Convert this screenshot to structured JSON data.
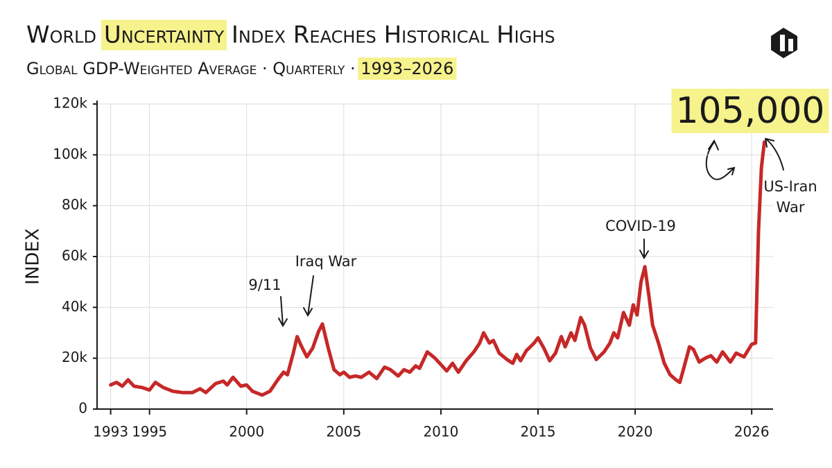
{
  "chart_data": {
    "type": "line",
    "title": "World Uncertainty Index Reaches Historical Highs",
    "subtitle": "Global GDP-Weighted Average · Quarterly · 1993–2026",
    "y_label": "INDEX",
    "color": "#c62828",
    "grid": true,
    "x": [
      1993.0,
      1993.3,
      1993.6,
      1993.9,
      1994.2,
      1994.6,
      1995.0,
      1995.3,
      1995.7,
      1996.2,
      1996.7,
      1997.2,
      1997.6,
      1997.9,
      1998.4,
      1998.8,
      1999.0,
      1999.3,
      1999.7,
      2000.0,
      2000.3,
      2000.8,
      2001.2,
      2001.6,
      2001.9,
      2002.1,
      2002.4,
      2002.6,
      2002.8,
      2003.1,
      2003.4,
      2003.7,
      2003.9,
      2004.2,
      2004.5,
      2004.8,
      2005.0,
      2005.3,
      2005.6,
      2005.9,
      2006.3,
      2006.7,
      2007.1,
      2007.4,
      2007.8,
      2008.1,
      2008.4,
      2008.7,
      2008.9,
      2009.3,
      2009.7,
      2010.0,
      2010.3,
      2010.6,
      2010.9,
      2011.3,
      2011.7,
      2012.0,
      2012.2,
      2012.5,
      2012.7,
      2013.0,
      2013.4,
      2013.7,
      2013.9,
      2014.1,
      2014.4,
      2014.8,
      2015.0,
      2015.3,
      2015.6,
      2015.9,
      2016.2,
      2016.4,
      2016.7,
      2016.9,
      2017.2,
      2017.4,
      2017.7,
      2018.0,
      2018.4,
      2018.7,
      2018.9,
      2019.1,
      2019.4,
      2019.7,
      2019.9,
      2020.1,
      2020.3,
      2020.5,
      2020.7,
      2020.9,
      2021.2,
      2021.5,
      2021.8,
      2022.1,
      2022.3,
      2022.5,
      2022.8,
      2023.0,
      2023.3,
      2023.6,
      2023.9,
      2024.2,
      2024.5,
      2024.9,
      2025.2,
      2025.6,
      2026.0,
      2026.2,
      2026.35,
      2026.5,
      2026.65
    ],
    "values": [
      9500,
      10500,
      9000,
      11500,
      9000,
      8500,
      7500,
      10500,
      8500,
      7000,
      6500,
      6500,
      8000,
      6500,
      10000,
      11000,
      9500,
      12500,
      9000,
      9500,
      7000,
      5500,
      7000,
      11500,
      14500,
      13500,
      22000,
      28500,
      25000,
      20500,
      24000,
      30500,
      33500,
      24000,
      15500,
      13500,
      14500,
      12500,
      13000,
      12500,
      14500,
      12000,
      16500,
      15500,
      13000,
      15500,
      14500,
      17000,
      16000,
      22500,
      20000,
      17500,
      15000,
      18000,
      14500,
      19000,
      22500,
      26000,
      30000,
      26000,
      27000,
      22000,
      19500,
      18000,
      21500,
      19000,
      23000,
      26000,
      28000,
      24000,
      19000,
      22000,
      28500,
      24500,
      30000,
      27000,
      36000,
      33000,
      24000,
      19500,
      22500,
      26000,
      30000,
      28000,
      38000,
      33000,
      41000,
      37000,
      50000,
      56000,
      45000,
      33000,
      26000,
      18000,
      13500,
      11500,
      10500,
      16000,
      24500,
      23500,
      18500,
      20000,
      21000,
      18500,
      22500,
      18500,
      22000,
      20500,
      25500,
      26000,
      70000,
      95000,
      105000
    ],
    "value_labels": [
      null,
      null,
      null,
      null,
      null,
      null,
      null,
      null,
      null,
      null,
      null,
      null,
      null,
      null,
      null,
      null,
      null,
      null,
      null,
      null,
      null,
      null,
      null,
      null,
      null,
      null,
      null,
      null,
      null,
      null,
      null,
      null,
      null,
      null,
      null,
      null,
      null,
      null,
      null,
      null,
      null,
      null,
      null,
      null,
      null,
      null,
      null,
      null,
      null,
      null,
      null,
      null,
      null,
      null,
      null,
      null,
      null,
      null,
      null,
      null,
      null,
      null,
      null,
      null,
      null,
      null,
      null,
      null,
      null,
      null,
      null,
      null,
      null,
      null,
      null,
      null,
      null,
      null,
      null,
      null,
      null,
      null,
      null,
      null,
      null,
      null,
      null,
      null,
      null,
      null,
      null,
      null,
      null,
      null,
      null,
      null,
      null,
      null,
      null,
      null,
      null,
      null,
      null,
      null,
      null,
      null,
      null,
      null,
      null,
      null,
      null,
      null,
      "105,000"
    ],
    "xlim": [
      1992.3,
      2027.1
    ],
    "xticks": [
      1993,
      1995,
      2000,
      2005,
      2010,
      2015,
      2020,
      2026
    ],
    "ylim": [
      0,
      120000
    ],
    "yticks": [
      0,
      {
        "value": 20000,
        "label": "20k"
      },
      {
        "value": 40000,
        "label": "40k"
      },
      {
        "value": 60000,
        "label": "60k"
      },
      {
        "value": 80000,
        "label": "80k"
      },
      {
        "value": 100000,
        "label": "100k"
      },
      {
        "value": 120000,
        "label": "120k"
      }
    ],
    "annotations": [
      {
        "text": "9/11"
      },
      {
        "text": "Iraq War"
      },
      {
        "text": "COVID-19"
      },
      {
        "text": "US-Iran War"
      }
    ]
  }
}
